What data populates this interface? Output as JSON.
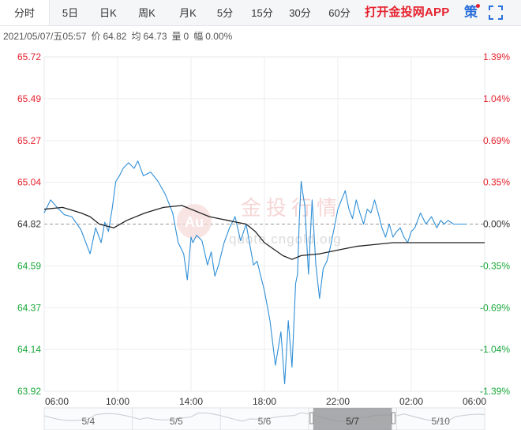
{
  "tabs": [
    {
      "label": "分时",
      "active": true
    },
    {
      "label": "5日"
    },
    {
      "label": "日K"
    },
    {
      "label": "周K"
    },
    {
      "label": "月K"
    },
    {
      "label": "5分"
    },
    {
      "label": "15分"
    },
    {
      "label": "30分"
    },
    {
      "label": "60分"
    }
  ],
  "promo_label": "打开金投网APP",
  "strategy_label": "策",
  "info": {
    "datetime": "2021/05/07/五05:57",
    "price_label": "价",
    "price_value": "64.82",
    "avg_label": "均",
    "avg_value": "64.73",
    "volume_label": "量",
    "volume_value": "0",
    "change_label": "幅",
    "change_value": "0.00%"
  },
  "watermark": {
    "cn": "金投行情",
    "en": "quote.cngold.org"
  },
  "colors": {
    "up": "#e5212d",
    "down": "#1aa83a",
    "price_line": "#2f8fd6",
    "avg_line": "#222222",
    "promo": "#e5212d"
  },
  "chart_data": {
    "type": "line",
    "base_price": 64.82,
    "ylim": [
      63.92,
      65.72
    ],
    "y_ticks_left": [
      "65.72",
      "65.49",
      "65.27",
      "65.04",
      "64.82",
      "64.59",
      "64.37",
      "64.14",
      "63.92"
    ],
    "y_ticks_right": [
      "1.39%",
      "1.04%",
      "0.69%",
      "0.35%",
      "0.00%",
      "-0.35%",
      "-0.69%",
      "-1.04%",
      "-1.39%"
    ],
    "x_ticks": [
      "06:00",
      "10:00",
      "14:00",
      "18:00",
      "22:00",
      "02:00",
      "06:00"
    ],
    "x_range_hours": [
      0,
      24
    ],
    "series": [
      {
        "kind": "price",
        "x": [
          0,
          0.35,
          0.7,
          1.1,
          1.5,
          2.0,
          2.5,
          2.8,
          3.1,
          3.3,
          3.5,
          3.7,
          3.9,
          4.1,
          4.3,
          4.6,
          4.9,
          5.1,
          5.4,
          5.8,
          6.2,
          6.6,
          7.0,
          7.3,
          7.6,
          7.8,
          8.0,
          8.1,
          8.3,
          8.6,
          8.9,
          9.1,
          9.3,
          9.5,
          9.8,
          10.1,
          10.4,
          10.7,
          11.0,
          11.4,
          11.6,
          12.0,
          12.3,
          12.6,
          12.9,
          13.1,
          13.3,
          13.5,
          13.7,
          13.8,
          13.9,
          14.0,
          14.1,
          14.2,
          14.4,
          14.6,
          14.8,
          15.0,
          15.2,
          15.4,
          15.6,
          15.8,
          16.0,
          16.2,
          16.4,
          16.6,
          16.8,
          17.0,
          17.2,
          17.4,
          17.6,
          17.8,
          18.0,
          18.2,
          18.4,
          18.6,
          18.8,
          19.0,
          19.2,
          19.4,
          19.6,
          19.8,
          20.0,
          20.2,
          20.5,
          20.8,
          21.1,
          21.4,
          21.6,
          21.8,
          22.0,
          22.3,
          22.7,
          23.0
        ],
        "values": [
          64.88,
          64.95,
          64.91,
          64.87,
          64.86,
          64.79,
          64.66,
          64.8,
          64.72,
          64.83,
          64.78,
          64.9,
          65.05,
          65.08,
          65.12,
          65.15,
          65.12,
          65.16,
          65.08,
          65.1,
          65.05,
          64.98,
          64.88,
          64.72,
          64.66,
          64.52,
          64.75,
          64.72,
          64.76,
          64.73,
          64.6,
          64.67,
          64.54,
          64.6,
          64.72,
          64.8,
          64.86,
          64.73,
          64.82,
          64.6,
          64.62,
          64.46,
          64.3,
          64.06,
          64.24,
          63.96,
          64.3,
          64.05,
          64.5,
          64.55,
          64.85,
          65.05,
          64.98,
          64.92,
          64.55,
          64.95,
          64.6,
          64.42,
          64.58,
          64.62,
          64.7,
          64.8,
          64.9,
          64.95,
          65.0,
          64.9,
          64.85,
          64.95,
          64.88,
          64.82,
          64.9,
          64.88,
          64.95,
          64.88,
          64.8,
          64.75,
          64.82,
          64.75,
          64.78,
          64.8,
          64.75,
          64.72,
          64.78,
          64.8,
          64.88,
          64.82,
          64.86,
          64.8,
          64.84,
          64.82,
          64.84,
          64.82,
          64.82,
          64.82
        ]
      },
      {
        "kind": "average",
        "x": [
          0,
          1.0,
          2.0,
          2.5,
          3.0,
          3.8,
          4.5,
          5.5,
          6.5,
          7.5,
          8.0,
          8.5,
          9.0,
          9.5,
          10.0,
          10.5,
          11.0,
          11.5,
          12.0,
          13.0,
          13.5,
          14.0,
          15.0,
          16.0,
          17.0,
          18.0,
          19.0,
          20.0,
          21.0,
          22.0,
          23.0,
          24.0
        ],
        "values": [
          64.9,
          64.91,
          64.88,
          64.86,
          64.82,
          64.8,
          64.84,
          64.88,
          64.91,
          64.92,
          64.9,
          64.88,
          64.86,
          64.85,
          64.84,
          64.83,
          64.82,
          64.78,
          64.72,
          64.65,
          64.63,
          64.65,
          64.66,
          64.68,
          64.7,
          64.71,
          64.72,
          64.72,
          64.72,
          64.72,
          64.72,
          64.72
        ]
      }
    ]
  },
  "navigator": {
    "dates": [
      "5/4",
      "5/5",
      "5/6",
      "5/7",
      "5/10"
    ],
    "selected_index": 3
  }
}
